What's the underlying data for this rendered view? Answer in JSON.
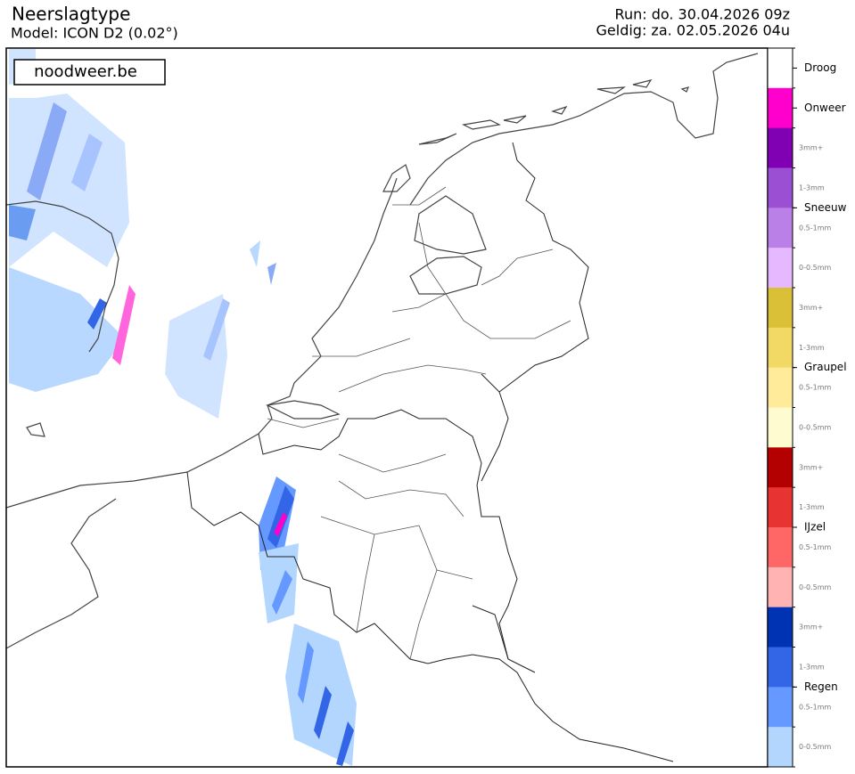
{
  "header": {
    "title": "Neerslagtype",
    "model": "Model: ICON D2 (0.02°)",
    "run": "Run: do. 30.04.2026 09z",
    "valid": "Geldig: za. 02.05.2026 04u"
  },
  "watermark": "noodweer.be",
  "legend": {
    "groups": [
      {
        "label": "Droog",
        "segments": [
          {
            "color": "#ffffff"
          }
        ]
      },
      {
        "label": "Onweer",
        "segments": [
          {
            "color": "#ff00cc"
          }
        ]
      },
      {
        "label": "Sneeuw",
        "segments": [
          {
            "label": "3mm+",
            "color": "#8000b4"
          },
          {
            "label": "1-3mm",
            "color": "#9b4fd2"
          },
          {
            "label": "0.5-1mm",
            "color": "#bb80e8"
          },
          {
            "label": "0-0.5mm",
            "color": "#e6b8ff"
          }
        ]
      },
      {
        "label": "Graupel",
        "segments": [
          {
            "label": "3mm+",
            "color": "#d9c036"
          },
          {
            "label": "1-3mm",
            "color": "#f2d864"
          },
          {
            "label": "0.5-1mm",
            "color": "#ffeb99"
          },
          {
            "label": "0-0.5mm",
            "color": "#fffbd0"
          }
        ]
      },
      {
        "label": "IJzel",
        "segments": [
          {
            "label": "3mm+",
            "color": "#b30000"
          },
          {
            "label": "1-3mm",
            "color": "#e83333"
          },
          {
            "label": "0.5-1mm",
            "color": "#ff6666"
          },
          {
            "label": "0-0.5mm",
            "color": "#ffb3b3"
          }
        ]
      },
      {
        "label": "Regen",
        "segments": [
          {
            "label": "3mm+",
            "color": "#0033b3"
          },
          {
            "label": "1-3mm",
            "color": "#3366e6"
          },
          {
            "label": "0.5-1mm",
            "color": "#6699ff"
          },
          {
            "label": "0-0.5mm",
            "color": "#b3d6ff"
          }
        ]
      }
    ]
  }
}
